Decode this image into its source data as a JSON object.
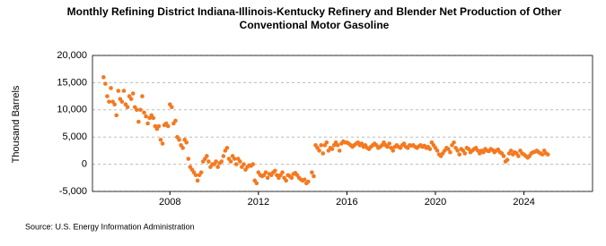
{
  "chart_data": {
    "type": "scatter",
    "title": "Monthly Refining District Indiana-Illinois-Kentucky Refinery and Blender Net Production of Other Conventional Motor Gasoline",
    "ylabel": "Thousand Barrels",
    "source": "Source: U.S. Energy Information Administration",
    "color": "#f47920",
    "grid": true,
    "xlim": [
      2004.5,
      2027.1
    ],
    "xticks": [
      2008,
      2012,
      2016,
      2020,
      2024
    ],
    "ylim": [
      -5000,
      20000
    ],
    "yticks": [
      {
        "value": -5000,
        "label": "-5,000"
      },
      0,
      {
        "value": 5000,
        "label": "5,000"
      },
      {
        "value": 10000,
        "label": "10,000"
      },
      {
        "value": 15000,
        "label": "15,000"
      },
      {
        "value": 20000,
        "label": "20,000"
      }
    ],
    "x": [
      2005,
      2005.083,
      2005.167,
      2005.25,
      2005.333,
      2005.417,
      2005.5,
      2005.583,
      2005.667,
      2005.75,
      2005.833,
      2005.917,
      2006,
      2006.083,
      2006.167,
      2006.25,
      2006.333,
      2006.417,
      2006.5,
      2006.583,
      2006.667,
      2006.75,
      2006.833,
      2006.917,
      2007,
      2007.083,
      2007.167,
      2007.25,
      2007.333,
      2007.417,
      2007.5,
      2007.583,
      2007.667,
      2007.75,
      2007.833,
      2007.917,
      2008,
      2008.083,
      2008.167,
      2008.25,
      2008.333,
      2008.417,
      2008.5,
      2008.583,
      2008.667,
      2008.75,
      2008.833,
      2008.917,
      2009,
      2009.083,
      2009.167,
      2009.25,
      2009.333,
      2009.417,
      2009.5,
      2009.583,
      2009.667,
      2009.75,
      2009.833,
      2009.917,
      2010,
      2010.083,
      2010.167,
      2010.25,
      2010.333,
      2010.417,
      2010.5,
      2010.583,
      2010.667,
      2010.75,
      2010.833,
      2010.917,
      2011,
      2011.083,
      2011.167,
      2011.25,
      2011.333,
      2011.417,
      2011.5,
      2011.583,
      2011.667,
      2011.75,
      2011.833,
      2011.917,
      2012,
      2012.083,
      2012.167,
      2012.25,
      2012.333,
      2012.417,
      2012.5,
      2012.583,
      2012.667,
      2012.75,
      2012.833,
      2012.917,
      2013,
      2013.083,
      2013.167,
      2013.25,
      2013.333,
      2013.417,
      2013.5,
      2013.583,
      2013.667,
      2013.75,
      2013.833,
      2013.917,
      2014,
      2014.083,
      2014.167,
      2014.25,
      2014.333,
      2014.417,
      2014.5,
      2014.583,
      2014.667,
      2014.75,
      2014.833,
      2014.917,
      2015,
      2015.083,
      2015.167,
      2015.25,
      2015.333,
      2015.417,
      2015.5,
      2015.583,
      2015.667,
      2015.75,
      2015.833,
      2015.917,
      2016,
      2016.083,
      2016.167,
      2016.25,
      2016.333,
      2016.417,
      2016.5,
      2016.583,
      2016.667,
      2016.75,
      2016.833,
      2016.917,
      2017,
      2017.083,
      2017.167,
      2017.25,
      2017.333,
      2017.417,
      2017.5,
      2017.583,
      2017.667,
      2017.75,
      2017.833,
      2017.917,
      2018,
      2018.083,
      2018.167,
      2018.25,
      2018.333,
      2018.417,
      2018.5,
      2018.583,
      2018.667,
      2018.75,
      2018.833,
      2018.917,
      2019,
      2019.083,
      2019.167,
      2019.25,
      2019.333,
      2019.417,
      2019.5,
      2019.583,
      2019.667,
      2019.75,
      2019.833,
      2019.917,
      2020,
      2020.083,
      2020.167,
      2020.25,
      2020.333,
      2020.417,
      2020.5,
      2020.583,
      2020.667,
      2020.75,
      2020.833,
      2020.917,
      2021,
      2021.083,
      2021.167,
      2021.25,
      2021.333,
      2021.417,
      2021.5,
      2021.583,
      2021.667,
      2021.75,
      2021.833,
      2021.917,
      2022,
      2022.083,
      2022.167,
      2022.25,
      2022.333,
      2022.417,
      2022.5,
      2022.583,
      2022.667,
      2022.75,
      2022.833,
      2022.917,
      2023,
      2023.083,
      2023.167,
      2023.25,
      2023.333,
      2023.417,
      2023.5,
      2023.583,
      2023.667,
      2023.75,
      2023.833,
      2023.917,
      2024,
      2024.083,
      2024.167,
      2024.25,
      2024.333,
      2024.417,
      2024.5,
      2024.583,
      2024.667,
      2024.75,
      2024.833,
      2024.917,
      2025,
      2025.083
    ],
    "values": [
      16000,
      14800,
      12500,
      11500,
      14000,
      11500,
      11000,
      9000,
      13500,
      12000,
      11500,
      13500,
      11000,
      10500,
      12500,
      12000,
      13000,
      10500,
      10000,
      7800,
      10000,
      12500,
      9500,
      8800,
      7500,
      8500,
      9000,
      8500,
      7000,
      6500,
      7000,
      4500,
      3800,
      7200,
      7500,
      7000,
      11000,
      10500,
      7500,
      8000,
      5000,
      4500,
      3500,
      3000,
      4500,
      4000,
      1000,
      -500,
      -1000,
      -1500,
      -2000,
      -3000,
      -2000,
      -1500,
      500,
      1000,
      1500,
      500,
      -500,
      0,
      0,
      500,
      -500,
      200,
      500,
      1500,
      2500,
      3000,
      1000,
      500,
      1500,
      1000,
      0,
      1000,
      500,
      -500,
      0,
      -1000,
      -500,
      -200,
      -300,
      0,
      -3000,
      -3500,
      -1500,
      -2000,
      -2200,
      -2000,
      -1500,
      -2500,
      -1800,
      -2000,
      -1500,
      -1200,
      -2000,
      -2500,
      -2000,
      -1500,
      -2500,
      -3000,
      -2000,
      -2200,
      -2500,
      -1800,
      -1600,
      -2000,
      -2500,
      -2800,
      -3000,
      -2800,
      -3500,
      -3200,
      null,
      -1500,
      -2200,
      3500,
      3000,
      2500,
      3500,
      2000,
      3500,
      4000,
      2500,
      3000,
      2800,
      3500,
      4000,
      3500,
      2500,
      3800,
      4200,
      4000,
      4000,
      3800,
      3500,
      3200,
      3500,
      3800,
      4000,
      3500,
      3800,
      3200,
      3500,
      3000,
      2800,
      3200,
      3500,
      3800,
      3500,
      3000,
      3200,
      3500,
      4000,
      3500,
      3200,
      3800,
      3000,
      2500,
      3200,
      3500,
      3200,
      3000,
      3500,
      3800,
      3200,
      3000,
      3500,
      3400,
      3500,
      3200,
      3000,
      3300,
      3500,
      3200,
      3400,
      3000,
      3200,
      2800,
      4000,
      3500,
      3000,
      2500,
      1800,
      1500,
      2000,
      2500,
      3000,
      2800,
      2200,
      3500,
      4000,
      3000,
      2500,
      1800,
      2800,
      2500,
      2000,
      3000,
      2800,
      2200,
      2500,
      2800,
      3000,
      2500,
      2000,
      2500,
      2200,
      2800,
      2500,
      2400,
      2800,
      2600,
      2200,
      2500,
      2700,
      2200,
      2000,
      1500,
      500,
      800,
      2000,
      2500,
      1800,
      2200,
      2000,
      1500,
      2500,
      2000,
      1800,
      1500,
      1200,
      1500,
      2000,
      2200,
      2300,
      2500,
      2200,
      2000,
      1800,
      2500,
      2000,
      1800
    ]
  }
}
